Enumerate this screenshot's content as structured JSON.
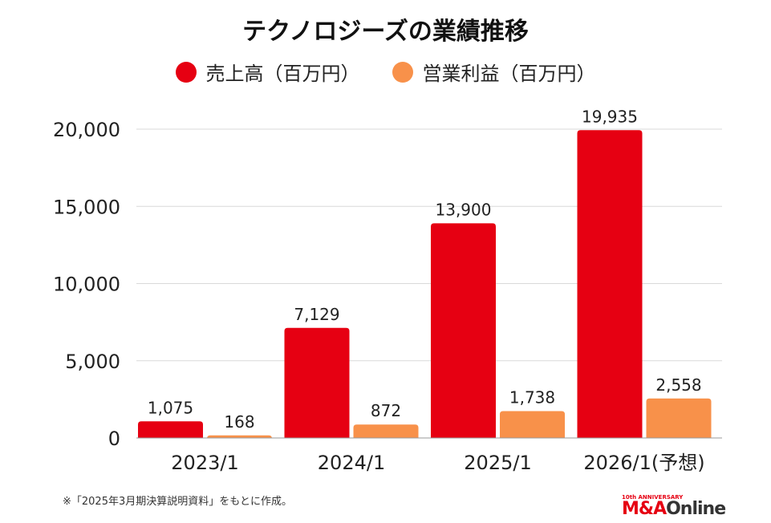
{
  "chart_data": {
    "type": "bar",
    "title": "テクノロジーズの業績推移",
    "categories": [
      "2023/1",
      "2024/1",
      "2025/1",
      "2026/1(予想)"
    ],
    "series": [
      {
        "name": "売上高（百万円）",
        "color": "#e60012",
        "values": [
          1075,
          7129,
          13900,
          19935
        ],
        "labels": [
          "1,075",
          "7,129",
          "13,900",
          "19,935"
        ]
      },
      {
        "name": "営業利益（百万円）",
        "color": "#f8914a",
        "values": [
          168,
          872,
          1738,
          2558
        ],
        "labels": [
          "168",
          "872",
          "1,738",
          "2,558"
        ]
      }
    ],
    "ylim": [
      0,
      20000
    ],
    "yticks": [
      0,
      5000,
      10000,
      15000,
      20000
    ],
    "ytick_labels": [
      "0",
      "5,000",
      "10,000",
      "15,000",
      "20,000"
    ],
    "grid": true,
    "legend": "top-center"
  },
  "footnote": "※「2025年3月期決算説明資料」をもとに作成。",
  "logo": {
    "anniversary": "10th ANNIVERSARY",
    "brand_a": "M&A",
    "brand_b": "Online"
  }
}
